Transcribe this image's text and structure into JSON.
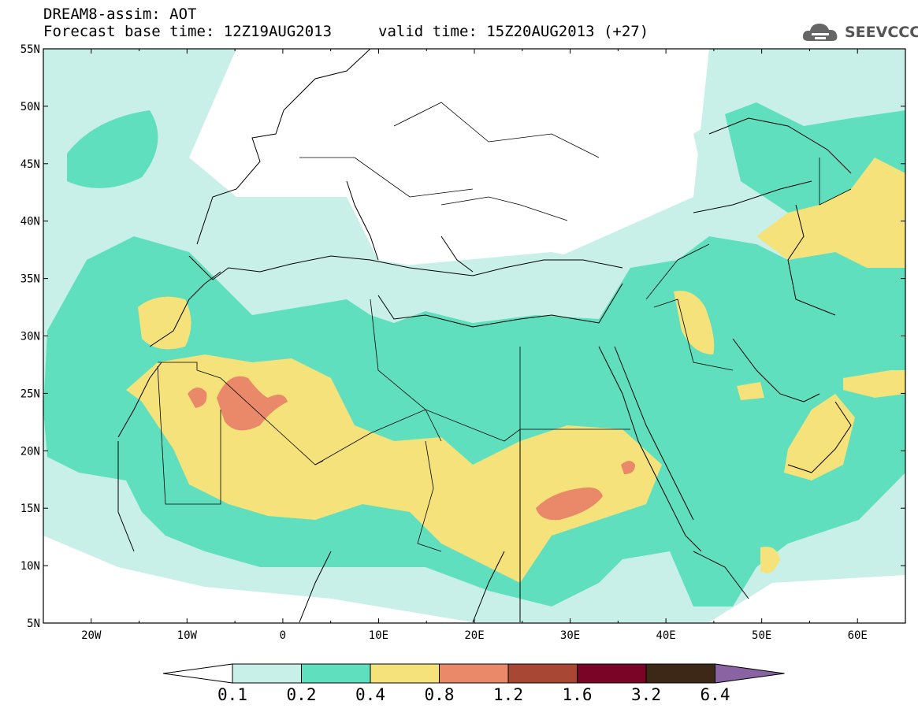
{
  "header": {
    "title_line1": "DREAM8-assim: AOT",
    "base_time": "Forecast base time: 12Z19AUG2013",
    "valid_time": "valid time: 15Z20AUG2013 (+27)"
  },
  "logo": {
    "text": "SEEVCCC",
    "icon": "cloud-icon"
  },
  "map": {
    "lon_range": [
      -25,
      65
    ],
    "lat_range": [
      5,
      55
    ],
    "lat_labels": [
      "55N",
      "50N",
      "45N",
      "40N",
      "35N",
      "30N",
      "25N",
      "20N",
      "15N",
      "10N",
      "5N"
    ],
    "lon_labels": [
      "20W",
      "10W",
      "0",
      "10E",
      "20E",
      "30E",
      "40E",
      "50E",
      "60E"
    ],
    "background_color": "#ffffff",
    "border_color": "#000000"
  },
  "colorbar": {
    "labels": [
      "0.1",
      "0.2",
      "0.4",
      "0.8",
      "1.2",
      "1.6",
      "3.2",
      "6.4"
    ],
    "colors": [
      "#ffffff",
      "#c8f0e9",
      "#5fdfbd",
      "#f5e27a",
      "#e9896a",
      "#a94735",
      "#7a0426",
      "#3d2817",
      "#8a63a3"
    ]
  }
}
